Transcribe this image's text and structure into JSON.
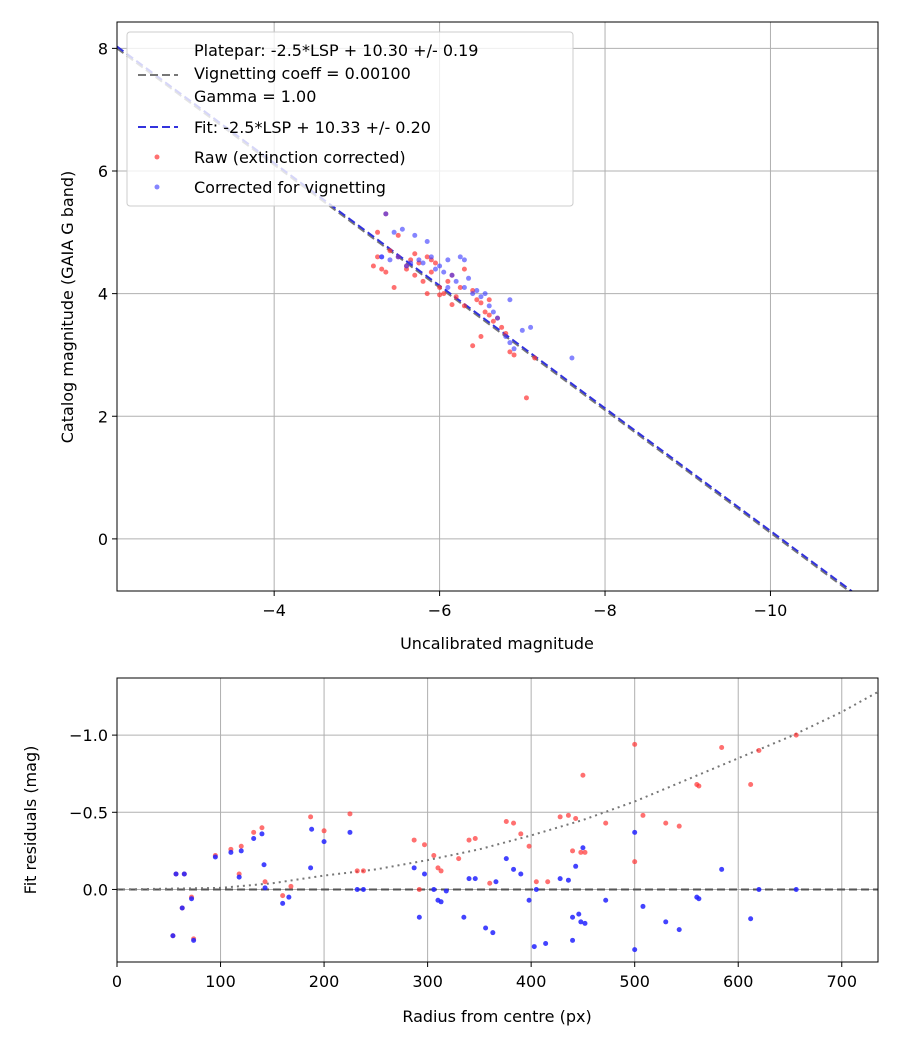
{
  "chart_data": [
    {
      "type": "scatter",
      "xlabel": "Uncalibrated magnitude",
      "ylabel": "Catalog magnitude (GAIA G band)",
      "xlim": [
        -2.1,
        -11.3
      ],
      "ylim": [
        8.43,
        -0.85
      ],
      "xticks": [
        -4,
        -6,
        -8,
        -10
      ],
      "xtick_labels": [
        "−4",
        "−6",
        "−8",
        "−10"
      ],
      "yticks": [
        0,
        2,
        4,
        6,
        8
      ],
      "ytick_labels": [
        "0",
        "2",
        "4",
        "6",
        "8"
      ],
      "grid": true,
      "legend_position": "top-left",
      "lines": [
        {
          "name": "Platepar: -2.5*LSP + 10.30 +/- 0.19",
          "label_lines": [
            "Platepar: -2.5*LSP + 10.30 +/- 0.19",
            "Vignetting coeff = 0.00100",
            "Gamma = 1.00"
          ],
          "color": "#777777",
          "dash": "dashed",
          "x": [
            -2.1,
            -11.3
          ],
          "y": [
            8.0,
            -1.2
          ]
        },
        {
          "name": "Fit: -2.5*LSP + 10.33 +/- 0.20",
          "label_lines": [
            "Fit: -2.5*LSP + 10.33 +/- 0.20"
          ],
          "color": "#3333dd",
          "dash": "dashed",
          "x": [
            -2.1,
            -11.3
          ],
          "y": [
            8.03,
            -1.17
          ]
        }
      ],
      "series": [
        {
          "name": "Raw (extinction corrected)",
          "color": "#ff3333",
          "points": [
            [
              -5.2,
              4.45
            ],
            [
              -5.3,
              4.4
            ],
            [
              -5.35,
              4.35
            ],
            [
              -5.25,
              4.6
            ],
            [
              -5.4,
              4.7
            ],
            [
              -5.45,
              4.1
            ],
            [
              -5.5,
              4.6
            ],
            [
              -5.6,
              4.4
            ],
            [
              -5.65,
              4.55
            ],
            [
              -5.7,
              4.3
            ],
            [
              -5.75,
              4.5
            ],
            [
              -5.8,
              4.2
            ],
            [
              -5.85,
              4.6
            ],
            [
              -5.9,
              4.35
            ],
            [
              -5.95,
              4.5
            ],
            [
              -6.0,
              4.1
            ],
            [
              -6.05,
              4.0
            ],
            [
              -6.1,
              4.2
            ],
            [
              -6.15,
              4.3
            ],
            [
              -6.2,
              3.95
            ],
            [
              -6.25,
              4.1
            ],
            [
              -6.3,
              3.8
            ],
            [
              -6.4,
              4.05
            ],
            [
              -6.45,
              3.9
            ],
            [
              -6.5,
              3.85
            ],
            [
              -6.55,
              3.7
            ],
            [
              -6.6,
              3.65
            ],
            [
              -6.65,
              3.55
            ],
            [
              -6.7,
              3.6
            ],
            [
              -6.75,
              3.45
            ],
            [
              -6.8,
              3.35
            ],
            [
              -6.85,
              3.05
            ],
            [
              -6.9,
              3.0
            ],
            [
              -7.05,
              2.3
            ],
            [
              -7.15,
              2.95
            ],
            [
              -6.4,
              3.15
            ],
            [
              -6.5,
              3.3
            ],
            [
              -5.25,
              5.0
            ],
            [
              -5.35,
              5.3
            ],
            [
              -5.5,
              4.95
            ],
            [
              -5.6,
              4.45
            ],
            [
              -5.9,
              4.55
            ],
            [
              -6.0,
              3.98
            ],
            [
              -6.3,
              4.4
            ],
            [
              -5.85,
              4.0
            ],
            [
              -5.7,
              4.65
            ],
            [
              -6.15,
              3.82
            ],
            [
              -6.6,
              3.9
            ]
          ]
        },
        {
          "name": "Corrected for vignetting",
          "color": "#3333ff",
          "points": [
            [
              -5.3,
              4.6
            ],
            [
              -5.4,
              4.55
            ],
            [
              -5.45,
              5.0
            ],
            [
              -5.5,
              4.6
            ],
            [
              -5.55,
              5.05
            ],
            [
              -5.6,
              4.45
            ],
            [
              -5.65,
              4.5
            ],
            [
              -5.7,
              4.95
            ],
            [
              -5.75,
              4.55
            ],
            [
              -5.8,
              4.5
            ],
            [
              -5.85,
              4.85
            ],
            [
              -5.9,
              4.6
            ],
            [
              -5.95,
              4.4
            ],
            [
              -6.0,
              4.45
            ],
            [
              -6.05,
              4.35
            ],
            [
              -6.1,
              4.55
            ],
            [
              -6.15,
              4.3
            ],
            [
              -6.2,
              4.2
            ],
            [
              -6.25,
              4.6
            ],
            [
              -6.3,
              4.1
            ],
            [
              -6.35,
              4.25
            ],
            [
              -6.4,
              4.0
            ],
            [
              -6.45,
              4.05
            ],
            [
              -6.5,
              3.95
            ],
            [
              -6.55,
              4.0
            ],
            [
              -6.6,
              3.8
            ],
            [
              -6.65,
              3.7
            ],
            [
              -6.7,
              3.6
            ],
            [
              -6.8,
              3.3
            ],
            [
              -6.85,
              3.2
            ],
            [
              -6.9,
              3.1
            ],
            [
              -7.0,
              3.4
            ],
            [
              -7.1,
              3.45
            ],
            [
              -7.6,
              2.95
            ],
            [
              -6.85,
              3.9
            ],
            [
              -6.3,
              4.55
            ],
            [
              -6.1,
              4.1
            ],
            [
              -5.35,
              5.3
            ],
            [
              -5.3,
              4.6
            ]
          ]
        }
      ]
    },
    {
      "type": "scatter",
      "xlabel": "Radius from centre (px)",
      "ylabel": "Fit residuals (mag)",
      "xlim": [
        0,
        735
      ],
      "ylim": [
        -1.37,
        0.47
      ],
      "xticks": [
        0,
        100,
        200,
        300,
        400,
        500,
        600,
        700
      ],
      "xtick_labels": [
        "0",
        "100",
        "200",
        "300",
        "400",
        "500",
        "600",
        "700"
      ],
      "yticks": [
        0.0,
        -0.5,
        -1.0
      ],
      "ytick_labels": [
        "0.0",
        "−0.5",
        "−1.0"
      ],
      "grid": true,
      "lines": [
        {
          "name": "zero",
          "color": "#555555",
          "dash": "dashed",
          "x": [
            0,
            735
          ],
          "y": [
            0,
            0
          ]
        },
        {
          "name": "vignetting model",
          "color": "#777777",
          "dash": "dotted",
          "x": [
            0,
            100,
            150,
            200,
            250,
            300,
            350,
            400,
            450,
            500,
            550,
            600,
            650,
            700,
            735
          ],
          "y": [
            0,
            -0.01,
            -0.04,
            -0.09,
            -0.13,
            -0.19,
            -0.26,
            -0.35,
            -0.45,
            -0.57,
            -0.71,
            -0.85,
            -0.99,
            -1.15,
            -1.28
          ]
        }
      ],
      "series": [
        {
          "name": "Raw",
          "color": "#ff3333",
          "points": [
            [
              54,
              0.3
            ],
            [
              57,
              -0.1
            ],
            [
              63,
              0.12
            ],
            [
              65,
              -0.1
            ],
            [
              72,
              0.05
            ],
            [
              74,
              0.32
            ],
            [
              95,
              -0.22
            ],
            [
              110,
              -0.26
            ],
            [
              118,
              -0.1
            ],
            [
              120,
              -0.28
            ],
            [
              132,
              -0.37
            ],
            [
              140,
              -0.4
            ],
            [
              143,
              -0.05
            ],
            [
              160,
              0.04
            ],
            [
              168,
              -0.02
            ],
            [
              187,
              -0.47
            ],
            [
              200,
              -0.38
            ],
            [
              225,
              -0.49
            ],
            [
              232,
              -0.12
            ],
            [
              238,
              -0.12
            ],
            [
              287,
              -0.32
            ],
            [
              292,
              0.0
            ],
            [
              297,
              -0.29
            ],
            [
              306,
              -0.22
            ],
            [
              310,
              -0.14
            ],
            [
              313,
              -0.12
            ],
            [
              330,
              -0.2
            ],
            [
              340,
              -0.32
            ],
            [
              346,
              -0.33
            ],
            [
              360,
              -0.04
            ],
            [
              376,
              -0.44
            ],
            [
              383,
              -0.43
            ],
            [
              390,
              -0.36
            ],
            [
              398,
              -0.28
            ],
            [
              405,
              -0.05
            ],
            [
              416,
              -0.05
            ],
            [
              428,
              -0.47
            ],
            [
              436,
              -0.48
            ],
            [
              440,
              -0.25
            ],
            [
              443,
              -0.46
            ],
            [
              448,
              -0.24
            ],
            [
              450,
              -0.74
            ],
            [
              452,
              -0.24
            ],
            [
              472,
              -0.43
            ],
            [
              500,
              -0.94
            ],
            [
              500,
              -0.18
            ],
            [
              508,
              -0.48
            ],
            [
              530,
              -0.43
            ],
            [
              543,
              -0.41
            ],
            [
              560,
              -0.68
            ],
            [
              562,
              -0.67
            ],
            [
              584,
              -0.92
            ],
            [
              612,
              -0.68
            ],
            [
              620,
              -0.9
            ],
            [
              656,
              -1.0
            ]
          ]
        },
        {
          "name": "Corrected",
          "color": "#2222ff",
          "points": [
            [
              54,
              0.3
            ],
            [
              57,
              -0.1
            ],
            [
              63,
              0.12
            ],
            [
              65,
              -0.1
            ],
            [
              72,
              0.06
            ],
            [
              74,
              0.33
            ],
            [
              95,
              -0.21
            ],
            [
              110,
              -0.24
            ],
            [
              118,
              -0.08
            ],
            [
              120,
              -0.25
            ],
            [
              132,
              -0.33
            ],
            [
              140,
              -0.36
            ],
            [
              142,
              -0.16
            ],
            [
              143,
              -0.01
            ],
            [
              160,
              0.09
            ],
            [
              166,
              0.05
            ],
            [
              187,
              -0.14
            ],
            [
              188,
              -0.39
            ],
            [
              200,
              -0.31
            ],
            [
              225,
              -0.37
            ],
            [
              232,
              0.0
            ],
            [
              238,
              0.0
            ],
            [
              287,
              -0.14
            ],
            [
              292,
              0.18
            ],
            [
              297,
              -0.1
            ],
            [
              306,
              0.0
            ],
            [
              310,
              0.07
            ],
            [
              313,
              0.08
            ],
            [
              318,
              0.01
            ],
            [
              335,
              0.18
            ],
            [
              340,
              -0.07
            ],
            [
              346,
              -0.07
            ],
            [
              356,
              0.25
            ],
            [
              363,
              0.28
            ],
            [
              366,
              -0.05
            ],
            [
              376,
              -0.2
            ],
            [
              383,
              -0.13
            ],
            [
              390,
              -0.1
            ],
            [
              398,
              0.07
            ],
            [
              403,
              0.37
            ],
            [
              405,
              0.0
            ],
            [
              414,
              0.35
            ],
            [
              428,
              -0.07
            ],
            [
              436,
              -0.06
            ],
            [
              440,
              0.18
            ],
            [
              443,
              -0.15
            ],
            [
              440,
              0.33
            ],
            [
              446,
              0.16
            ],
            [
              448,
              0.21
            ],
            [
              450,
              -0.27
            ],
            [
              452,
              0.22
            ],
            [
              472,
              0.07
            ],
            [
              500,
              -0.37
            ],
            [
              500,
              0.39
            ],
            [
              508,
              0.11
            ],
            [
              530,
              0.21
            ],
            [
              543,
              0.26
            ],
            [
              560,
              0.05
            ],
            [
              562,
              0.06
            ],
            [
              584,
              -0.13
            ],
            [
              612,
              0.19
            ],
            [
              620,
              0.0
            ],
            [
              656,
              0.0
            ]
          ]
        }
      ]
    }
  ]
}
